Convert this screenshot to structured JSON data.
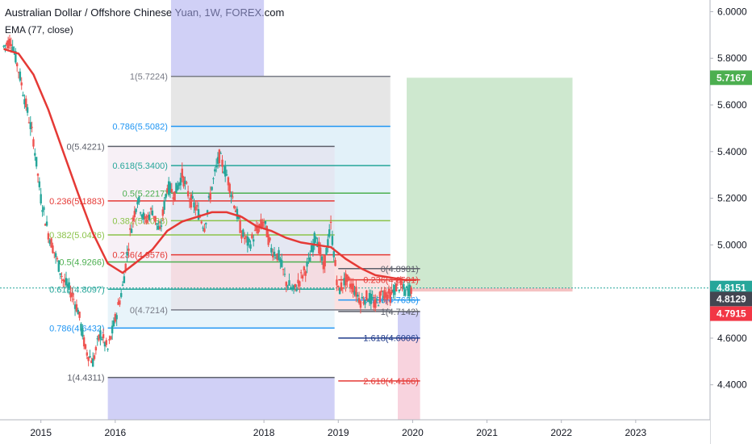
{
  "header": {
    "title": "Australian Dollar / Offshore Chinese Yuan, 1W, FOREX.com",
    "indicator": "EMA (77, close)"
  },
  "colors": {
    "candle_up": "#26a69a",
    "candle_down": "#ef5350",
    "ema": "#e53935",
    "fib_bg_a": "#dcdcdc",
    "fib_bg_b": "#d8ecf7",
    "range_blue": "#a9a9ef",
    "range_pink": "#f4b6c8",
    "profit_zone": "#a5d6a7",
    "loss_zone": "#ef9a9a",
    "price_line": "#26a69a",
    "axis_text": "#131722"
  },
  "chart_data": {
    "type": "candlestick",
    "symbol": "AUD/CNH",
    "interval": "1W",
    "ylim": [
      4.25,
      6.05
    ],
    "xlim": [
      2014.45,
      2024.0
    ],
    "x_ticks": [
      "2015",
      "2016",
      "2018",
      "2019",
      "2020",
      "2021",
      "2022",
      "2023"
    ],
    "y_ticks": [
      "6.0000",
      "5.8000",
      "5.6000",
      "5.4000",
      "5.2000",
      "5.0000",
      "4.8000",
      "4.6000",
      "4.4000"
    ],
    "price_labels": [
      {
        "value": "5.7167",
        "price": 5.7167,
        "color": "#4caf50"
      },
      {
        "value": "4.8151",
        "price": 4.8151,
        "color": "#26a69a"
      },
      {
        "value": "4.8129",
        "price": 4.8129,
        "color": "#434651"
      },
      {
        "value": "4.7915",
        "price": 4.7915,
        "color": "#f23645"
      }
    ],
    "price_series": [
      [
        2014.5,
        5.85
      ],
      [
        2014.6,
        5.88
      ],
      [
        2014.7,
        5.75
      ],
      [
        2014.8,
        5.6
      ],
      [
        2014.9,
        5.45
      ],
      [
        2015.0,
        5.2
      ],
      [
        2015.1,
        5.05
      ],
      [
        2015.2,
        4.95
      ],
      [
        2015.3,
        4.85
      ],
      [
        2015.4,
        4.8
      ],
      [
        2015.5,
        4.72
      ],
      [
        2015.6,
        4.55
      ],
      [
        2015.7,
        4.5
      ],
      [
        2015.8,
        4.62
      ],
      [
        2015.9,
        4.55
      ],
      [
        2016.0,
        4.68
      ],
      [
        2016.1,
        4.82
      ],
      [
        2016.2,
        5.05
      ],
      [
        2016.3,
        5.2
      ],
      [
        2016.4,
        5.1
      ],
      [
        2016.5,
        5.15
      ],
      [
        2016.6,
        5.05
      ],
      [
        2016.7,
        5.25
      ],
      [
        2016.8,
        5.22
      ],
      [
        2016.9,
        5.3
      ],
      [
        2017.0,
        5.2
      ],
      [
        2017.1,
        5.15
      ],
      [
        2017.2,
        5.08
      ],
      [
        2017.3,
        5.25
      ],
      [
        2017.4,
        5.38
      ],
      [
        2017.5,
        5.3
      ],
      [
        2017.6,
        5.18
      ],
      [
        2017.7,
        5.05
      ],
      [
        2017.8,
        5.0
      ],
      [
        2017.9,
        5.06
      ],
      [
        2018.0,
        5.1
      ],
      [
        2018.1,
        4.98
      ],
      [
        2018.2,
        4.95
      ],
      [
        2018.3,
        4.84
      ],
      [
        2018.4,
        4.8
      ],
      [
        2018.5,
        4.86
      ],
      [
        2018.6,
        4.92
      ],
      [
        2018.7,
        5.05
      ],
      [
        2018.8,
        4.9
      ],
      [
        2018.9,
        5.08
      ],
      [
        2019.0,
        4.8
      ],
      [
        2019.1,
        4.85
      ],
      [
        2019.2,
        4.82
      ],
      [
        2019.3,
        4.76
      ],
      [
        2019.4,
        4.78
      ],
      [
        2019.5,
        4.74
      ],
      [
        2019.6,
        4.8
      ],
      [
        2019.7,
        4.78
      ],
      [
        2019.8,
        4.83
      ],
      [
        2019.9,
        4.8
      ],
      [
        2020.0,
        4.815
      ]
    ],
    "ema_series": [
      [
        2014.5,
        5.84
      ],
      [
        2014.7,
        5.82
      ],
      [
        2014.9,
        5.73
      ],
      [
        2015.1,
        5.58
      ],
      [
        2015.3,
        5.4
      ],
      [
        2015.5,
        5.22
      ],
      [
        2015.7,
        5.05
      ],
      [
        2015.9,
        4.92
      ],
      [
        2016.1,
        4.88
      ],
      [
        2016.3,
        4.93
      ],
      [
        2016.5,
        4.98
      ],
      [
        2016.7,
        5.06
      ],
      [
        2016.9,
        5.1
      ],
      [
        2017.1,
        5.12
      ],
      [
        2017.3,
        5.14
      ],
      [
        2017.5,
        5.14
      ],
      [
        2017.7,
        5.12
      ],
      [
        2017.9,
        5.08
      ],
      [
        2018.1,
        5.06
      ],
      [
        2018.3,
        5.03
      ],
      [
        2018.5,
        5.01
      ],
      [
        2018.7,
        5.0
      ],
      [
        2018.9,
        4.99
      ],
      [
        2019.1,
        4.94
      ],
      [
        2019.3,
        4.9
      ],
      [
        2019.5,
        4.87
      ],
      [
        2019.7,
        4.86
      ],
      [
        2019.9,
        4.85
      ],
      [
        2020.05,
        4.85
      ]
    ],
    "fib_large": {
      "levels": [
        {
          "label": "0(5.4221)",
          "price": 5.4221,
          "color": "#5d606b"
        },
        {
          "label": "0.236(5.1883)",
          "price": 5.1883,
          "color": "#e53935"
        },
        {
          "label": "0.382(5.0426)",
          "price": 5.0426,
          "color": "#8bc34a"
        },
        {
          "label": "0.5(4.9266)",
          "price": 4.9266,
          "color": "#4caf50"
        },
        {
          "label": "0.618(4.8097)",
          "price": 4.8097,
          "color": "#26a69a"
        },
        {
          "label": "0.786(4.6432)",
          "price": 4.6432,
          "color": "#2196f3"
        },
        {
          "label": "1(4.4311)",
          "price": 4.4311,
          "color": "#5d606b"
        }
      ]
    },
    "fib_middle": {
      "levels": [
        {
          "label": "1(5.7224)",
          "price": 5.7224,
          "color": "#787b86"
        },
        {
          "label": "0.786(5.5082)",
          "price": 5.5082,
          "color": "#2196f3"
        },
        {
          "label": "0.618(5.3400)",
          "price": 5.34,
          "color": "#26a69a"
        },
        {
          "label": "0.5(5.2217)",
          "price": 5.2217,
          "color": "#4caf50"
        },
        {
          "label": "0.382(5.1038)",
          "price": 5.1038,
          "color": "#8bc34a"
        },
        {
          "label": "0.236(4.9576)",
          "price": 4.9576,
          "color": "#e53935"
        },
        {
          "label": "0(4.7214)",
          "price": 4.7214,
          "color": "#787b86"
        }
      ]
    },
    "fib_small": {
      "levels": [
        {
          "label": "0(4.8981)",
          "price": 4.8981,
          "color": "#5d606b"
        },
        {
          "label": "0.236(4.8501)",
          "price": 4.8501,
          "color": "#e53935"
        },
        {
          "label": "0.786(4.7636)",
          "price": 4.7636,
          "color": "#2196f3"
        },
        {
          "label": "1(4.7142)",
          "price": 4.7142,
          "color": "#5d606b"
        },
        {
          "label": "1.618(4.6006)",
          "price": 4.6006,
          "color": "#1e3a8a"
        },
        {
          "label": "2.618(4.4166)",
          "price": 4.4166,
          "color": "#e53935"
        }
      ]
    },
    "position": {
      "entry": 4.815,
      "target": 5.7167,
      "stop": 4.8
    }
  }
}
